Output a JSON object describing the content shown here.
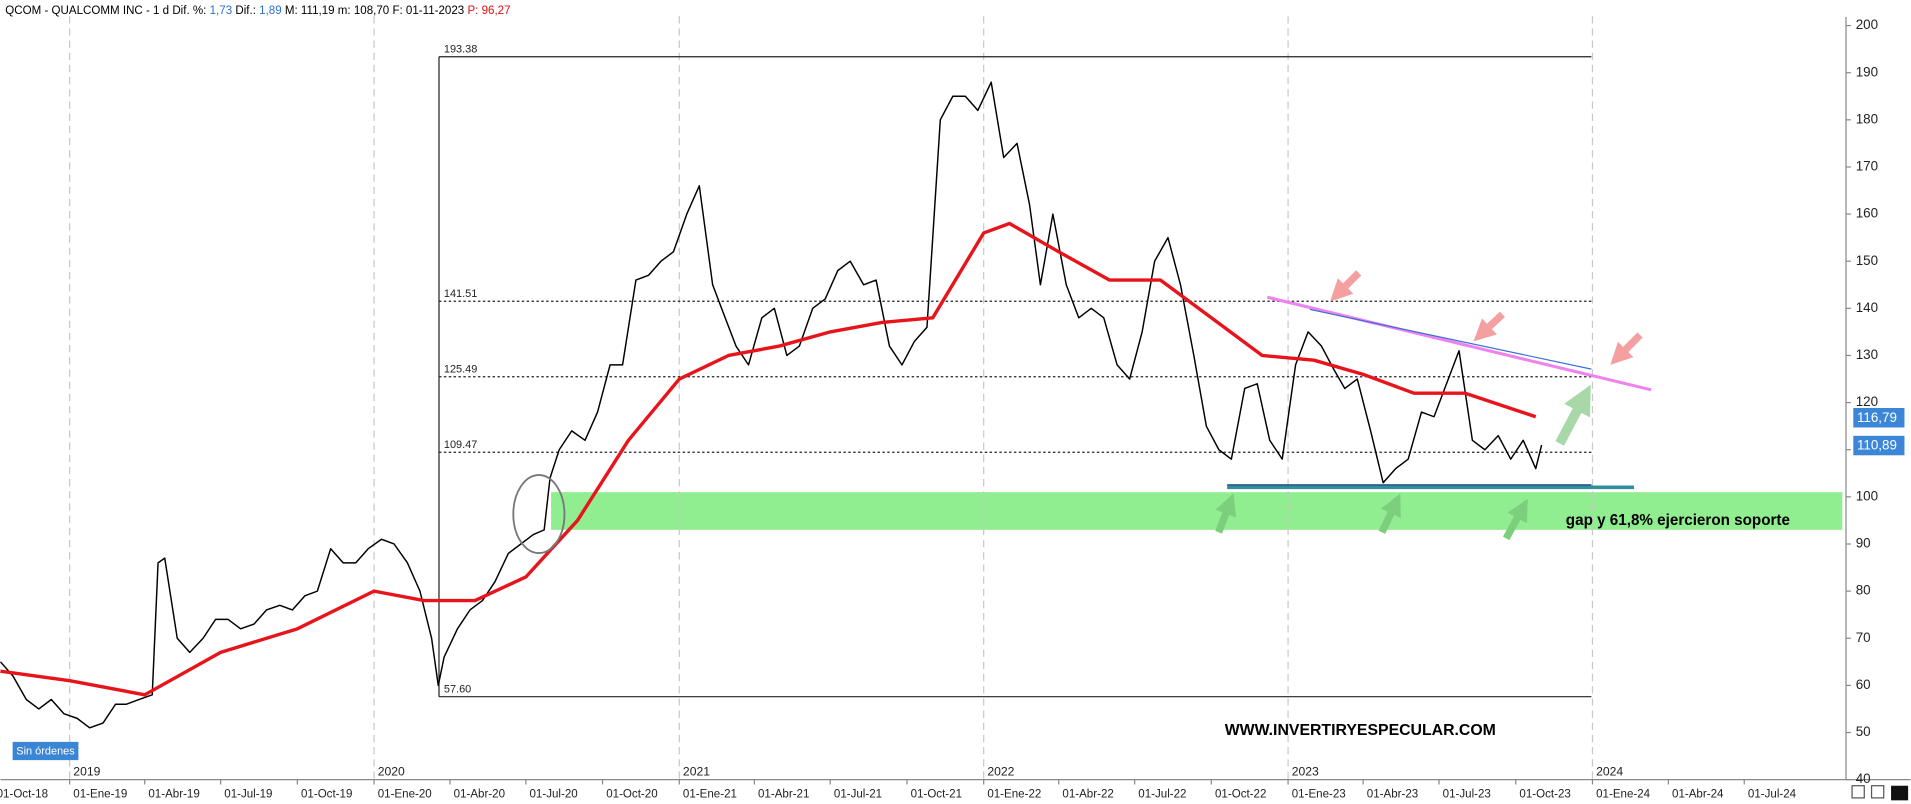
{
  "header": [
    "QCOM - QUALCOMM INC -  1 d",
    "Dif. %:",
    "1,73",
    "Dif.:",
    "1,89",
    "M: 111,19",
    "m: 108,70",
    "F: 01-11-2023",
    "P: 96,27"
  ],
  "chart_data": {
    "type": "line",
    "xlim": [
      "2018-10-10",
      "2024-10-31"
    ],
    "ylim": [
      40,
      202
    ],
    "yticks": [
      40,
      50,
      60,
      70,
      80,
      90,
      100,
      110,
      120,
      130,
      140,
      150,
      160,
      170,
      180,
      190,
      200
    ],
    "xticks": [
      {
        "value": "2018-10-01",
        "label": "01-Oct-18"
      },
      {
        "value": "2019-01-01",
        "label": "01-Ene-19"
      },
      {
        "value": "2019-04-01",
        "label": "01-Abr-19"
      },
      {
        "value": "2019-07-01",
        "label": "01-Jul-19"
      },
      {
        "value": "2019-10-01",
        "label": "01-Oct-19"
      },
      {
        "value": "2020-01-01",
        "label": "01-Ene-20"
      },
      {
        "value": "2020-04-01",
        "label": "01-Abr-20"
      },
      {
        "value": "2020-07-01",
        "label": "01-Jul-20"
      },
      {
        "value": "2020-10-01",
        "label": "01-Oct-20"
      },
      {
        "value": "2021-01-01",
        "label": "01-Ene-21"
      },
      {
        "value": "2021-04-01",
        "label": "01-Abr-21"
      },
      {
        "value": "2021-07-01",
        "label": "01-Jul-21"
      },
      {
        "value": "2021-10-01",
        "label": "01-Oct-21"
      },
      {
        "value": "2022-01-01",
        "label": "01-Ene-22"
      },
      {
        "value": "2022-04-01",
        "label": "01-Abr-22"
      },
      {
        "value": "2022-07-01",
        "label": "01-Jul-22"
      },
      {
        "value": "2022-10-01",
        "label": "01-Oct-22"
      },
      {
        "value": "2023-01-01",
        "label": "01-Ene-23"
      },
      {
        "value": "2023-04-01",
        "label": "01-Abr-23"
      },
      {
        "value": "2023-07-01",
        "label": "01-Jul-23"
      },
      {
        "value": "2023-10-01",
        "label": "01-Oct-23"
      },
      {
        "value": "2024-01-01",
        "label": "01-Ene-24"
      },
      {
        "value": "2024-04-01",
        "label": "01-Abr-24"
      },
      {
        "value": "2024-07-01",
        "label": "01-Jul-24"
      }
    ],
    "years": [
      {
        "value": "2019-01-01",
        "label": "2019"
      },
      {
        "value": "2020-01-01",
        "label": "2020"
      },
      {
        "value": "2021-01-01",
        "label": "2021"
      },
      {
        "value": "2022-01-01",
        "label": "2022"
      },
      {
        "value": "2023-01-01",
        "label": "2023"
      },
      {
        "value": "2024-01-01",
        "label": "2024"
      }
    ],
    "grid": true,
    "series": [
      {
        "color": "#000000",
        "x": [
          "2018-10-10",
          "2018-10-25",
          "2018-11-10",
          "2018-11-25",
          "2018-12-10",
          "2018-12-25",
          "2019-01-10",
          "2019-01-25",
          "2019-02-10",
          "2019-02-25",
          "2019-03-10",
          "2019-03-25",
          "2019-04-10",
          "2019-04-17",
          "2019-04-25",
          "2019-05-10",
          "2019-05-25",
          "2019-06-10",
          "2019-06-25",
          "2019-07-10",
          "2019-07-25",
          "2019-08-10",
          "2019-08-25",
          "2019-09-10",
          "2019-09-25",
          "2019-10-10",
          "2019-10-25",
          "2019-11-10",
          "2019-11-25",
          "2019-12-10",
          "2019-12-25",
          "2020-01-10",
          "2020-01-25",
          "2020-02-10",
          "2020-02-25",
          "2020-03-10",
          "2020-03-18",
          "2020-03-25",
          "2020-04-10",
          "2020-04-25",
          "2020-05-10",
          "2020-05-25",
          "2020-06-10",
          "2020-06-25",
          "2020-07-10",
          "2020-07-23",
          "2020-07-30",
          "2020-08-10",
          "2020-08-25",
          "2020-09-10",
          "2020-09-25",
          "2020-10-10",
          "2020-10-25",
          "2020-11-10",
          "2020-11-25",
          "2020-12-10",
          "2020-12-25",
          "2021-01-10",
          "2021-01-25",
          "2021-02-10",
          "2021-02-25",
          "2021-03-10",
          "2021-03-25",
          "2021-04-10",
          "2021-04-25",
          "2021-05-10",
          "2021-05-25",
          "2021-06-10",
          "2021-06-25",
          "2021-07-10",
          "2021-07-25",
          "2021-08-10",
          "2021-08-25",
          "2021-09-10",
          "2021-09-25",
          "2021-10-10",
          "2021-10-25",
          "2021-11-10",
          "2021-11-25",
          "2021-12-10",
          "2021-12-25",
          "2022-01-10",
          "2022-01-25",
          "2022-02-10",
          "2022-02-25",
          "2022-03-10",
          "2022-03-25",
          "2022-04-10",
          "2022-04-25",
          "2022-05-10",
          "2022-05-25",
          "2022-06-10",
          "2022-06-25",
          "2022-07-10",
          "2022-07-25",
          "2022-08-10",
          "2022-08-25",
          "2022-09-10",
          "2022-09-25",
          "2022-10-10",
          "2022-10-25",
          "2022-11-10",
          "2022-11-25",
          "2022-12-10",
          "2022-12-25",
          "2023-01-10",
          "2023-01-25",
          "2023-02-10",
          "2023-02-25",
          "2023-03-10",
          "2023-03-25",
          "2023-04-10",
          "2023-04-25",
          "2023-05-10",
          "2023-05-25",
          "2023-06-10",
          "2023-06-25",
          "2023-07-10",
          "2023-07-25",
          "2023-08-10",
          "2023-08-25",
          "2023-09-10",
          "2023-09-25",
          "2023-10-10",
          "2023-10-25",
          "2023-11-01"
        ],
        "values": [
          65,
          62,
          57,
          55,
          57,
          54,
          53,
          51,
          52,
          56,
          56,
          57,
          58,
          86,
          87,
          70,
          67,
          70,
          74,
          74,
          72,
          73,
          76,
          77,
          76,
          79,
          80,
          89,
          86,
          86,
          89,
          91,
          90,
          86,
          80,
          70,
          60,
          66,
          72,
          76,
          78,
          82,
          88,
          90,
          92,
          93,
          104,
          110,
          114,
          112,
          118,
          128,
          128,
          146,
          147,
          150,
          152,
          160,
          166,
          145,
          138,
          132,
          128,
          138,
          140,
          130,
          132,
          140,
          142,
          148,
          150,
          145,
          146,
          132,
          128,
          133,
          136,
          180,
          185,
          185,
          182,
          188,
          172,
          175,
          162,
          145,
          160,
          145,
          138,
          140,
          138,
          128,
          125,
          135,
          150,
          155,
          145,
          130,
          115,
          110,
          108,
          123,
          124,
          112,
          108,
          128,
          135,
          132,
          127,
          123,
          125,
          114,
          103,
          106,
          108,
          118,
          117,
          124,
          131,
          112,
          110,
          113,
          108,
          112,
          106,
          111
        ]
      },
      {
        "color": "#e8141c",
        "x": [
          "2018-10-10",
          "2019-01-01",
          "2019-04-01",
          "2019-07-01",
          "2019-10-01",
          "2020-01-01",
          "2020-03-01",
          "2020-05-01",
          "2020-07-01",
          "2020-09-01",
          "2020-11-01",
          "2021-01-01",
          "2021-03-01",
          "2021-05-01",
          "2021-07-01",
          "2021-09-01",
          "2021-11-01",
          "2022-01-01",
          "2022-02-01",
          "2022-04-01",
          "2022-06-01",
          "2022-08-01",
          "2022-10-01",
          "2022-12-01",
          "2023-02-01",
          "2023-04-01",
          "2023-06-01",
          "2023-08-01",
          "2023-10-25"
        ],
        "values": [
          63,
          61,
          58,
          67,
          72,
          80,
          78,
          78,
          83,
          95,
          112,
          125,
          130,
          132,
          135,
          137,
          138,
          156,
          158,
          152,
          146,
          146,
          138,
          130,
          129,
          126,
          122,
          122,
          117
        ]
      }
    ],
    "fib_levels": [
      193.38,
      141.51,
      125.49,
      109.47,
      {
        "value": 57.6,
        "label": "57.60"
      }
    ],
    "price_tags": [
      {
        "value": 116.79,
        "label": "116,79"
      },
      {
        "value": 110.89,
        "label": "110,89"
      }
    ],
    "support_zone": {
      "low": 93,
      "high": 101,
      "color": "#90ee90",
      "text": "gap y 61,8% ejercieron soporte"
    },
    "watermark": "WWW.INVERTIRYESPECULAR.COM",
    "status": "Sin órdenes"
  }
}
